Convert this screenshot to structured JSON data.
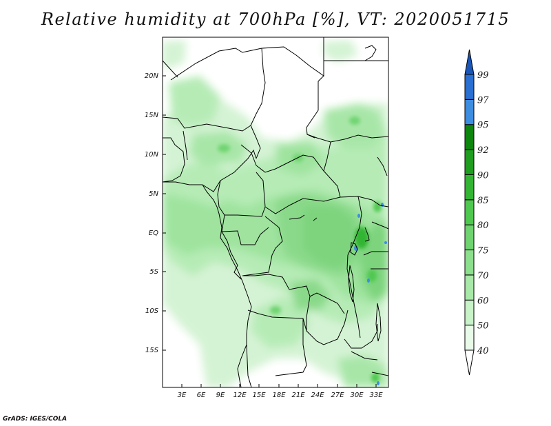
{
  "title": "Relative humidity at 700hPa [%], VT: 2020051715",
  "credit": "GrADS: IGES/COLA",
  "map": {
    "lat_labels": [
      "20N",
      "15N",
      "10N",
      "5N",
      "EQ",
      "5S",
      "10S",
      "15S"
    ],
    "lon_labels": [
      "3E",
      "6E",
      "9E",
      "12E",
      "15E",
      "18E",
      "21E",
      "24E",
      "27E",
      "30E",
      "33E"
    ]
  },
  "colorbar": {
    "levels": [
      "40",
      "50",
      "60",
      "70",
      "75",
      "80",
      "85",
      "90",
      "92",
      "95",
      "97",
      "99"
    ],
    "colors": [
      "#ffffff",
      "#e8fbe8",
      "#c8f2c8",
      "#a8e8a8",
      "#8cdf8c",
      "#6fd46f",
      "#4fc84f",
      "#33b533",
      "#1f9d1f",
      "#0d860d",
      "#3d8de0",
      "#2a6fd2",
      "#1a55b8"
    ]
  }
}
